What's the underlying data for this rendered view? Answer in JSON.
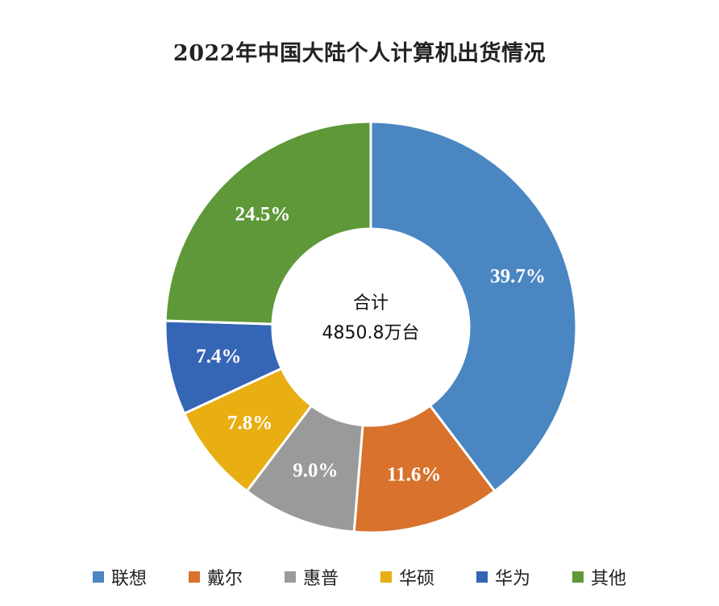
{
  "title": "2022年中国大陆个人计算机出货情况",
  "center": {
    "line1": "合计",
    "line2": "4850.8万台"
  },
  "chart_data": {
    "type": "pie",
    "subtype": "donut",
    "title": "2022年中国大陆个人计算机出货情况",
    "total_label": "合计 4850.8万台",
    "total_value": 4850.8,
    "unit": "万台",
    "categories": [
      "联想",
      "戴尔",
      "惠普",
      "华硕",
      "华为",
      "其他"
    ],
    "values": [
      39.7,
      11.6,
      9.0,
      7.8,
      7.4,
      24.5
    ],
    "labels": [
      "39.7%",
      "11.6%",
      "9.0%",
      "7.8%",
      "7.4%",
      "24.5%"
    ],
    "colors": [
      "#4A86C1",
      "#D8722D",
      "#9A9A9A",
      "#E8AE12",
      "#3565B5",
      "#5E9838"
    ],
    "start_angle": "12 o'clock, clockwise",
    "legend_position": "bottom"
  },
  "legend": [
    {
      "label": "联想",
      "color": "#4A86C1"
    },
    {
      "label": "戴尔",
      "color": "#D8722D"
    },
    {
      "label": "惠普",
      "color": "#9A9A9A"
    },
    {
      "label": "华硕",
      "color": "#E8AE12"
    },
    {
      "label": "华为",
      "color": "#3565B5"
    },
    {
      "label": "其他",
      "color": "#5E9838"
    }
  ]
}
